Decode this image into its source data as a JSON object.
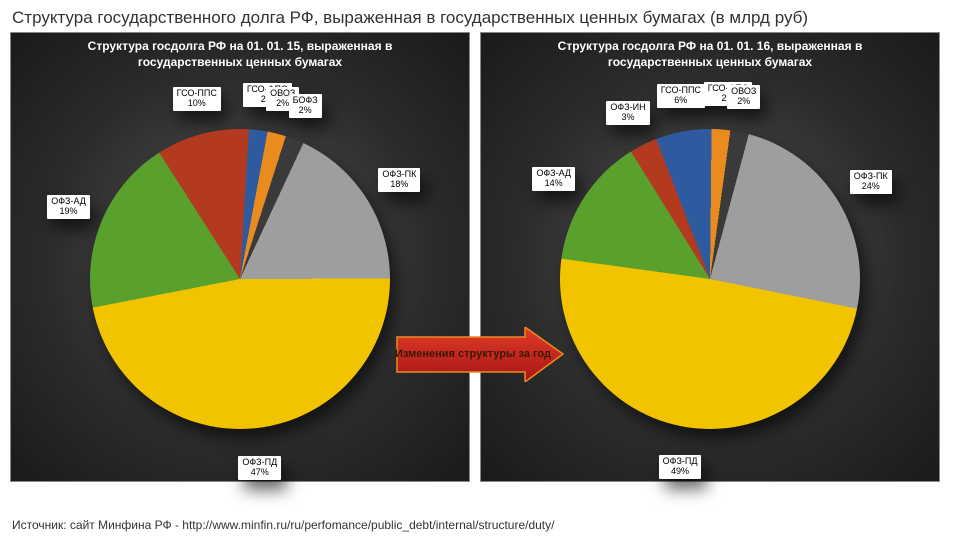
{
  "title": "Структура государственного долга РФ, выраженная в государственных ценных бумагах (в млрд руб)",
  "chart_left": {
    "type": "pie",
    "title": "Структура госдолга РФ на 01. 01. 15, выраженная в государственных ценных бумагах",
    "background_gradient": [
      "#555555",
      "#1a1a1a"
    ],
    "title_color": "#ffffff",
    "title_fontsize": 12,
    "slices": [
      {
        "label": "ОФЗ-ПК",
        "value": 18,
        "color": "#9e9e9e"
      },
      {
        "label": "ОФЗ-ПД",
        "value": 47,
        "color": "#f2c400"
      },
      {
        "label": "ОФЗ-АД",
        "value": 19,
        "color": "#5aa02c"
      },
      {
        "label": "ГСО-ППС",
        "value": 10,
        "color": "#b33a1e"
      },
      {
        "label": "ГСО-ФПС",
        "value": 2,
        "color": "#2e5aa0"
      },
      {
        "label": "ОВОЗ",
        "value": 2,
        "color": "#e98b1f"
      },
      {
        "label": "БОФЗ",
        "value": 2,
        "color": "#3a3a3a"
      }
    ],
    "label_bg": "#ffffff",
    "label_fontsize": 9
  },
  "chart_right": {
    "type": "pie",
    "title": "Структура госдолга РФ на 01. 01. 16, выраженная в государственных ценных бумагах",
    "background_gradient": [
      "#555555",
      "#1a1a1a"
    ],
    "title_color": "#ffffff",
    "title_fontsize": 12,
    "slices": [
      {
        "label": "ОФЗ-ПК",
        "value": 24,
        "color": "#9e9e9e"
      },
      {
        "label": "ОФЗ-ПД",
        "value": 49,
        "color": "#f2c400"
      },
      {
        "label": "ОФЗ-АД",
        "value": 14,
        "color": "#5aa02c"
      },
      {
        "label": "ОФЗ-ИН",
        "value": 3,
        "color": "#b33a1e"
      },
      {
        "label": "ГСО-ППС",
        "value": 6,
        "color": "#2e5aa0"
      },
      {
        "label": "ГСО-ФПС",
        "value": 2,
        "color": "#e98b1f"
      },
      {
        "label": "ОВОЗ",
        "value": 2,
        "color": "#3a3a3a"
      }
    ],
    "label_bg": "#ffffff",
    "label_fontsize": 9
  },
  "change_arrow": {
    "fill": "#cc1f1f",
    "stroke": "#e98b1f",
    "text": "Изменения структуры за год",
    "text_color": "#3a1a00"
  },
  "source": "Источник: сайт Минфина РФ - http://www.minfin.ru/ru/perfomance/public_debt/internal/structure/duty/"
}
